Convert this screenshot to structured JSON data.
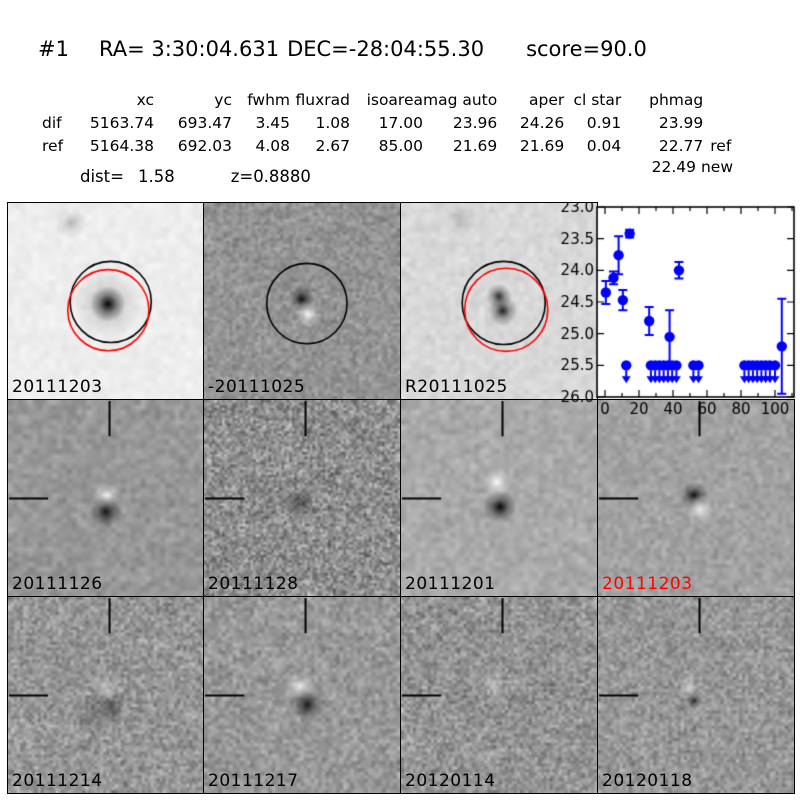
{
  "header": {
    "id": "#1",
    "ra": "RA= 3:30:04.631",
    "dec": "DEC=-28:04:55.30",
    "score": "score=90.0"
  },
  "table": {
    "columns": [
      "xc",
      "yc",
      "fwhm",
      "fluxrad",
      "isoarea",
      "mag auto",
      "aper",
      "cl star",
      "phmag"
    ],
    "rows": [
      {
        "label": "dif",
        "values": [
          "5163.74",
          "693.47",
          "3.45",
          "1.08",
          "17.00",
          "23.96",
          "24.26",
          "0.91",
          "23.99"
        ],
        "suffix": ""
      },
      {
        "label": "ref",
        "values": [
          "5164.38",
          "692.03",
          "4.08",
          "2.67",
          "85.00",
          "21.69",
          "21.69",
          "0.04",
          "22.77"
        ],
        "suffix": "ref"
      }
    ],
    "extra_phmag_value": "22.49",
    "extra_phmag_suffix": "new",
    "dist_label": "dist=",
    "dist_value": "1.58",
    "z_value": "z=0.8880"
  },
  "panels": [
    {
      "label": "20111203",
      "label_color": "#000000"
    },
    {
      "label": "-20111025",
      "label_color": "#000000"
    },
    {
      "label": "R20111025",
      "label_color": "#000000"
    },
    {
      "label": "",
      "label_color": "#000000"
    },
    {
      "label": "20111126",
      "label_color": "#000000"
    },
    {
      "label": "20111128",
      "label_color": "#000000"
    },
    {
      "label": "20111201",
      "label_color": "#000000"
    },
    {
      "label": "20111203",
      "label_color": "#ff0000"
    },
    {
      "label": "20111214",
      "label_color": "#000000"
    },
    {
      "label": "20111217",
      "label_color": "#000000"
    },
    {
      "label": "20120114",
      "label_color": "#000000"
    },
    {
      "label": "20120118",
      "label_color": "#000000"
    }
  ],
  "chart_data": {
    "type": "scatter",
    "title": "",
    "xlabel": "",
    "ylabel": "",
    "xlim": [
      -5,
      111
    ],
    "ylim": [
      26.0,
      23.0
    ],
    "y_axis_inverted": true,
    "xticks": [
      0,
      20,
      40,
      60,
      80,
      100
    ],
    "yticks": [
      23.0,
      23.5,
      24.0,
      24.5,
      25.0,
      25.5,
      26.0
    ],
    "marker_color": "#0000ff",
    "grid": false,
    "detections": [
      {
        "x": 0.5,
        "mag": 24.35,
        "err": 0.18
      },
      {
        "x": 5,
        "mag": 24.12,
        "err": 0.1
      },
      {
        "x": 8,
        "mag": 23.76,
        "err": 0.3
      },
      {
        "x": 10.5,
        "mag": 24.47,
        "err": 0.16
      },
      {
        "x": 14.5,
        "mag": 23.42,
        "err": 0.06
      },
      {
        "x": 26,
        "mag": 24.8,
        "err": 0.22
      },
      {
        "x": 38,
        "mag": 25.05,
        "err": 0.42
      },
      {
        "x": 43.5,
        "mag": 24.0,
        "err": 0.13
      },
      {
        "x": 104,
        "mag": 25.2,
        "err": 0.75
      }
    ],
    "upper_limits": {
      "mag": 25.5,
      "x": [
        12.5,
        27,
        29.5,
        32,
        34.5,
        37,
        39.5,
        42,
        52,
        55,
        82,
        84.5,
        87,
        89.5,
        92,
        94.5,
        97,
        100
      ]
    }
  }
}
